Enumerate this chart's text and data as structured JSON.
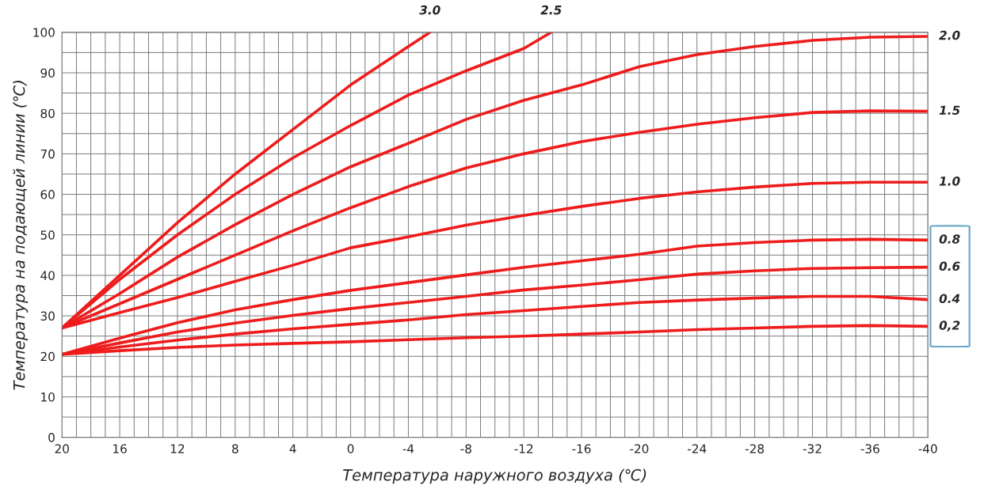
{
  "chart_data": {
    "type": "line",
    "xlabel": "Температура наружного воздуха (℃)",
    "ylabel": "Температура на подающей линии (℃)",
    "xlim": [
      20,
      -40
    ],
    "ylim": [
      0,
      100
    ],
    "xticks": [
      20,
      {
        "value": 19,
        "label": null
      },
      {
        "value": 18,
        "label": null
      },
      {
        "value": 17,
        "label": null
      },
      16,
      {
        "value": 15,
        "label": null
      },
      {
        "value": 14,
        "label": null
      },
      {
        "value": 13,
        "label": null
      },
      12,
      {
        "value": 11,
        "label": null
      },
      {
        "value": 10,
        "label": null
      },
      {
        "value": 9,
        "label": null
      },
      8,
      {
        "value": 7,
        "label": null
      },
      {
        "value": 6,
        "label": null
      },
      {
        "value": 5,
        "label": null
      },
      4,
      {
        "value": 3,
        "label": null
      },
      {
        "value": 2,
        "label": null
      },
      {
        "value": 1,
        "label": null
      },
      0,
      {
        "value": -1,
        "label": null
      },
      {
        "value": -2,
        "label": null
      },
      {
        "value": -3,
        "label": null
      },
      -4,
      {
        "value": -5,
        "label": null
      },
      {
        "value": -6,
        "label": null
      },
      {
        "value": -7,
        "label": null
      },
      -8,
      {
        "value": -9,
        "label": null
      },
      {
        "value": -10,
        "label": null
      },
      {
        "value": -11,
        "label": null
      },
      -12,
      {
        "value": -13,
        "label": null
      },
      {
        "value": -14,
        "label": null
      },
      {
        "value": -15,
        "label": null
      },
      -16,
      {
        "value": -17,
        "label": null
      },
      {
        "value": -18,
        "label": null
      },
      {
        "value": -19,
        "label": null
      },
      -20,
      {
        "value": -21,
        "label": null
      },
      {
        "value": -22,
        "label": null
      },
      {
        "value": -23,
        "label": null
      },
      -24,
      {
        "value": -25,
        "label": null
      },
      {
        "value": -26,
        "label": null
      },
      {
        "value": -27,
        "label": null
      },
      -28,
      {
        "value": -29,
        "label": null
      },
      {
        "value": -30,
        "label": null
      },
      {
        "value": -31,
        "label": null
      },
      -32,
      {
        "value": -33,
        "label": null
      },
      {
        "value": -34,
        "label": null
      },
      {
        "value": -35,
        "label": null
      },
      -36,
      {
        "value": -37,
        "label": null
      },
      {
        "value": -38,
        "label": null
      },
      {
        "value": -39,
        "label": null
      },
      -40
    ],
    "yticks": [
      0,
      {
        "value": 5,
        "label": null
      },
      10,
      {
        "value": 15,
        "label": null
      },
      20,
      {
        "value": 25,
        "label": null
      },
      30,
      {
        "value": 35,
        "label": null
      },
      40,
      {
        "value": 45,
        "label": null
      },
      50,
      {
        "value": 55,
        "label": null
      },
      60,
      {
        "value": 65,
        "label": null
      },
      70,
      {
        "value": 75,
        "label": null
      },
      80,
      {
        "value": 85,
        "label": null
      },
      90,
      {
        "value": 95,
        "label": null
      },
      100
    ],
    "grid": true,
    "legend": false,
    "marker": "none",
    "line_style": "solid",
    "series": [
      {
        "name": "3.0",
        "color": "#ee1c1c",
        "x": [
          20,
          16,
          12,
          8,
          4,
          0,
          -4,
          -5.5
        ],
        "values": [
          27,
          40,
          53,
          65,
          76,
          87,
          96.5,
          100
        ]
      },
      {
        "name": "2.5",
        "color": "#ee1c1c",
        "x": [
          20,
          16,
          12,
          8,
          4,
          0,
          -4,
          -8,
          -12,
          -13.9
        ],
        "values": [
          27,
          39,
          50,
          60,
          69,
          77,
          84.5,
          90.5,
          96,
          100
        ]
      },
      {
        "name": "2.0",
        "color": "#ee1c1c",
        "x": [
          20,
          16,
          12,
          8,
          4,
          0,
          -4,
          -8,
          -12,
          -16,
          -20,
          -24,
          -28,
          -32,
          -36,
          -40
        ],
        "values": [
          27,
          35.5,
          44.5,
          52.5,
          60,
          66.8,
          72.6,
          78.5,
          83.2,
          87,
          91.5,
          94.5,
          96.5,
          98,
          98.8,
          99
        ]
      },
      {
        "name": "1.5",
        "color": "#ee1c1c",
        "x": [
          20,
          16,
          12,
          8,
          4,
          0,
          -4,
          -8,
          -12,
          -16,
          -20,
          -24,
          -28,
          -32,
          -36,
          -40
        ],
        "values": [
          27,
          33,
          39,
          45,
          51,
          56.7,
          61.9,
          66.5,
          70,
          73,
          75.3,
          77.3,
          78.9,
          80.2,
          80.6,
          80.5
        ]
      },
      {
        "name": "1.0",
        "color": "#ee1c1c",
        "x": [
          20,
          16,
          12,
          8,
          4,
          0,
          -4,
          -8,
          -12,
          -16,
          -20,
          -24,
          -28,
          -32,
          -36,
          -40
        ],
        "values": [
          27,
          30.8,
          34.5,
          38.5,
          42.5,
          46.8,
          49.5,
          52.4,
          54.8,
          57,
          59,
          60.6,
          61.8,
          62.7,
          63,
          63
        ]
      },
      {
        "name": "0.8",
        "color": "#ee1c1c",
        "x": [
          20,
          16,
          12,
          8,
          4,
          0,
          -4,
          -8,
          -12,
          -16,
          -20,
          -24,
          -28,
          -32,
          -36,
          -40
        ],
        "values": [
          20.5,
          24.5,
          28.3,
          31.5,
          34,
          36.3,
          38.2,
          40.1,
          42,
          43.6,
          45.2,
          47.2,
          48.1,
          48.7,
          48.9,
          48.7
        ]
      },
      {
        "name": "0.6",
        "color": "#ee1c1c",
        "x": [
          20,
          16,
          12,
          8,
          4,
          0,
          -4,
          -8,
          -12,
          -16,
          -20,
          -24,
          -28,
          -32,
          -36,
          -40
        ],
        "values": [
          20.5,
          23.3,
          26,
          28.2,
          30.1,
          31.8,
          33.3,
          34.8,
          36.4,
          37.6,
          38.9,
          40.3,
          41.1,
          41.7,
          41.9,
          42
        ]
      },
      {
        "name": "0.4",
        "color": "#ee1c1c",
        "x": [
          20,
          16,
          12,
          8,
          4,
          0,
          -4,
          -8,
          -12,
          -16,
          -20,
          -24,
          -28,
          -32,
          -36,
          -40
        ],
        "values": [
          20.5,
          22.3,
          24,
          25.5,
          26.8,
          27.9,
          29,
          30.3,
          31.3,
          32.3,
          33.3,
          33.9,
          34.4,
          34.8,
          34.8,
          34
        ]
      },
      {
        "name": "0,2",
        "color": "#ee1c1c",
        "x": [
          20,
          16,
          12,
          8,
          4,
          0,
          -4,
          -8,
          -12,
          -16,
          -20,
          -24,
          -28,
          -32,
          -36,
          -40
        ],
        "values": [
          20.5,
          21.4,
          22.2,
          22.8,
          23.2,
          23.6,
          24.1,
          24.6,
          25,
          25.5,
          26,
          26.6,
          27,
          27.4,
          27.6,
          27.4
        ]
      }
    ]
  }
}
